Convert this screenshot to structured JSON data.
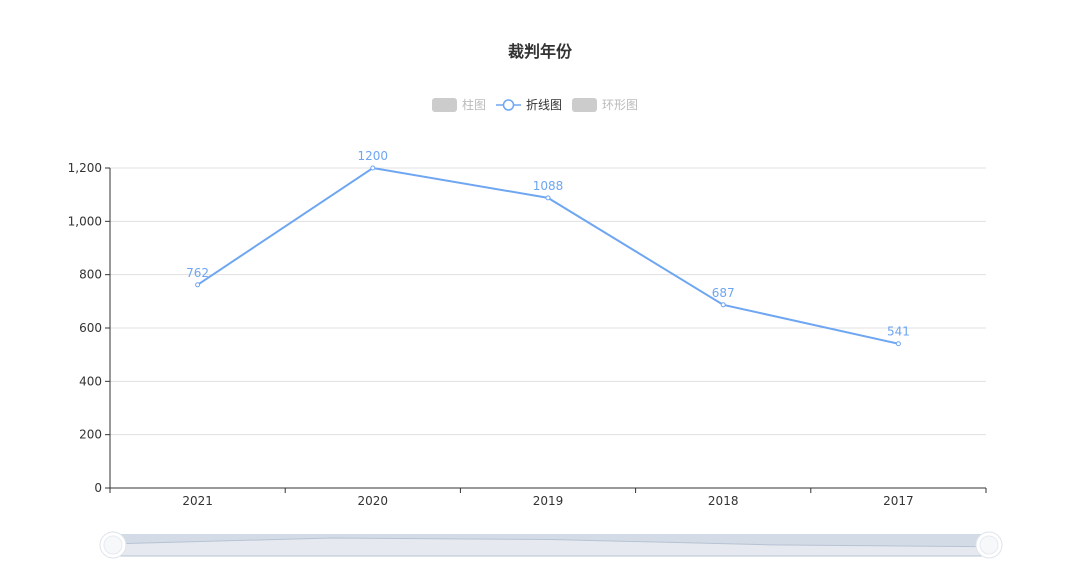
{
  "colors": {
    "line": "#6ea6f2",
    "legend_inactive": "#cccccc",
    "legend_inactive_text": "#bbbbbb",
    "legend_active_text": "#333333",
    "grid": "#e0e0e0",
    "axis": "#333333",
    "zoom_fill": "#d3dbe6",
    "zoom_line": "#b7c3d3"
  },
  "legend": {
    "items": [
      {
        "label": "柱图",
        "active": false,
        "icon": "rounded-rect-icon"
      },
      {
        "label": "折线图",
        "active": true,
        "icon": "line-circle-icon"
      },
      {
        "label": "环形图",
        "active": false,
        "icon": "rounded-rect-icon"
      }
    ]
  },
  "chart_data": {
    "type": "line",
    "title": "裁判年份",
    "categories": [
      "2021",
      "2020",
      "2019",
      "2018",
      "2017"
    ],
    "series": [
      {
        "values": [
          762,
          1200,
          1088,
          687,
          541
        ]
      }
    ],
    "ylim": [
      0,
      1200
    ],
    "yticks": [
      "0",
      "200",
      "400",
      "600",
      "800",
      "1,000",
      "1,200"
    ],
    "grid": true,
    "legend_position": "top-center",
    "data_zoom": {
      "start": 0,
      "end": 100
    }
  }
}
